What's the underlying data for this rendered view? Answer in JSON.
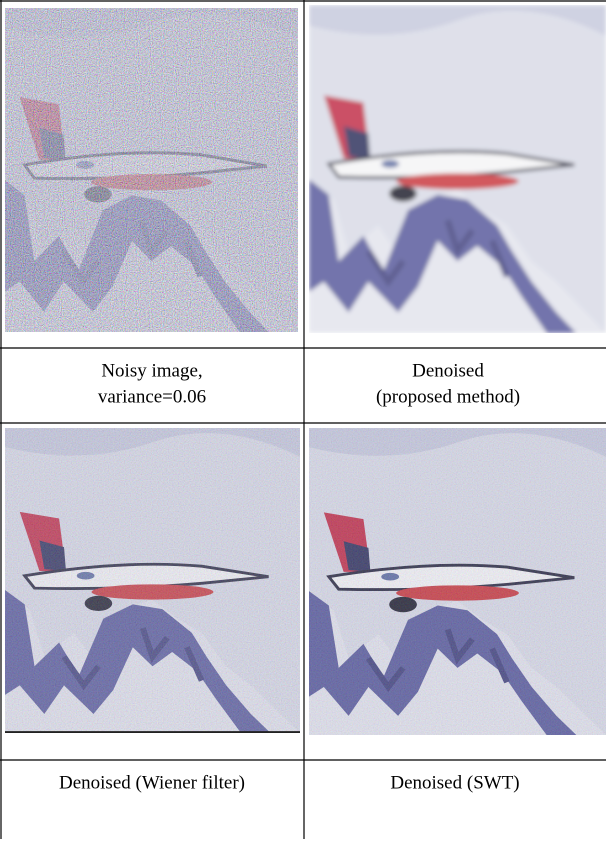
{
  "cells": [
    {
      "caption": [
        "Noisy image,",
        "variance=0.06"
      ]
    },
    {
      "caption": [
        "Denoised",
        "(proposed method)"
      ]
    },
    {
      "caption": [
        "Denoised (Wiener filter)"
      ]
    },
    {
      "caption": [
        "Denoised (SWT)"
      ]
    }
  ]
}
